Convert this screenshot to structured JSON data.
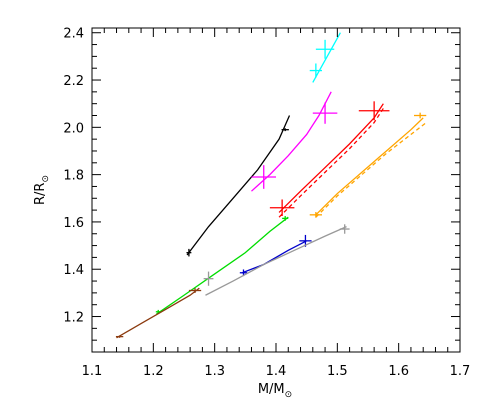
{
  "chart_data": {
    "type": "line",
    "xlabel": "M/M",
    "ylabel": "R/R",
    "label_subscript_symbol": "⊙",
    "xlim": [
      1.1,
      1.7
    ],
    "ylim": [
      1.05,
      2.42
    ],
    "x_ticks": [
      "1.1",
      "1.2",
      "1.3",
      "1.4",
      "1.5",
      "1.6",
      "1.7"
    ],
    "y_ticks": [
      "1.2",
      "1.4",
      "1.6",
      "1.8",
      "2.0",
      "2.2",
      "2.4"
    ],
    "grid": false,
    "legend": "none",
    "series": [
      {
        "color": "#000000",
        "style": "solid",
        "x": [
          1.255,
          1.29,
          1.33,
          1.37,
          1.405,
          1.422
        ],
        "y": [
          1.46,
          1.58,
          1.7,
          1.82,
          1.95,
          2.05
        ],
        "markers": [
          {
            "x": 1.258,
            "y": 1.47,
            "ex": 0.004,
            "ey": 0.016
          },
          {
            "x": 1.415,
            "y": 1.99,
            "ex": 0.006,
            "ey": 0.006
          }
        ]
      },
      {
        "color": "#ff00ff",
        "style": "solid",
        "x": [
          1.36,
          1.39,
          1.42,
          1.45,
          1.47,
          1.49
        ],
        "y": [
          1.73,
          1.8,
          1.88,
          1.97,
          2.05,
          2.15
        ],
        "markers": [
          {
            "x": 1.38,
            "y": 1.79,
            "ex": 0.02,
            "ey": 0.05
          },
          {
            "x": 1.48,
            "y": 2.06,
            "ex": 0.02,
            "ey": 0.045
          }
        ]
      },
      {
        "color": "#00ffff",
        "style": "solid",
        "x": [
          1.46,
          1.475,
          1.49,
          1.505
        ],
        "y": [
          2.19,
          2.26,
          2.33,
          2.4
        ],
        "markers": [
          {
            "x": 1.465,
            "y": 2.24,
            "ex": 0.01,
            "ey": 0.03
          },
          {
            "x": 1.48,
            "y": 2.33,
            "ex": 0.015,
            "ey": 0.04
          }
        ]
      },
      {
        "color": "#ff0000",
        "style": "solid",
        "x": [
          1.405,
          1.44,
          1.48,
          1.52,
          1.56,
          1.575
        ],
        "y": [
          1.64,
          1.73,
          1.83,
          1.93,
          2.04,
          2.1
        ],
        "markers": [
          {
            "x": 1.41,
            "y": 1.66,
            "ex": 0.02,
            "ey": 0.035
          },
          {
            "x": 1.56,
            "y": 2.07,
            "ex": 0.025,
            "ey": 0.04
          }
        ]
      },
      {
        "color": "#ff0000",
        "style": "dashed",
        "x": [
          1.405,
          1.44,
          1.48,
          1.52,
          1.56,
          1.575
        ],
        "y": [
          1.62,
          1.71,
          1.81,
          1.91,
          2.02,
          2.08
        ],
        "markers": []
      },
      {
        "color": "#ffa500",
        "style": "solid",
        "x": [
          1.465,
          1.5,
          1.54,
          1.58,
          1.62,
          1.64
        ],
        "y": [
          1.63,
          1.72,
          1.81,
          1.9,
          1.99,
          2.04
        ],
        "markers": [
          {
            "x": 1.465,
            "y": 1.63,
            "ex": 0.01,
            "ey": 0.012
          },
          {
            "x": 1.635,
            "y": 2.05,
            "ex": 0.01,
            "ey": 0.012
          }
        ]
      },
      {
        "color": "#ffa500",
        "style": "dashed",
        "x": [
          1.465,
          1.5,
          1.54,
          1.58,
          1.62,
          1.645
        ],
        "y": [
          1.62,
          1.71,
          1.8,
          1.89,
          1.97,
          2.02
        ],
        "markers": []
      },
      {
        "color": "#00dd00",
        "style": "solid",
        "x": [
          1.205,
          1.25,
          1.3,
          1.35,
          1.39,
          1.42
        ],
        "y": [
          1.21,
          1.29,
          1.38,
          1.47,
          1.56,
          1.62
        ],
        "markers": [
          {
            "x": 1.208,
            "y": 1.22,
            "ex": 0.004,
            "ey": 0.008
          },
          {
            "x": 1.415,
            "y": 1.615,
            "ex": 0.005,
            "ey": 0.01
          }
        ]
      },
      {
        "color": "#0000cc",
        "style": "solid",
        "x": [
          1.345,
          1.38,
          1.42,
          1.45
        ],
        "y": [
          1.385,
          1.42,
          1.48,
          1.52
        ],
        "markers": [
          {
            "x": 1.347,
            "y": 1.385,
            "ex": 0.006,
            "ey": 0.014
          },
          {
            "x": 1.448,
            "y": 1.52,
            "ex": 0.01,
            "ey": 0.025
          }
        ]
      },
      {
        "color": "#999999",
        "style": "solid",
        "x": [
          1.285,
          1.33,
          1.38,
          1.43,
          1.48,
          1.515
        ],
        "y": [
          1.29,
          1.35,
          1.42,
          1.48,
          1.54,
          1.58
        ],
        "markers": [
          {
            "x": 1.29,
            "y": 1.36,
            "ex": 0.008,
            "ey": 0.03
          },
          {
            "x": 1.512,
            "y": 1.57,
            "ex": 0.008,
            "ey": 0.02
          }
        ]
      },
      {
        "color": "#8b3a0e",
        "style": "solid",
        "x": [
          1.14,
          1.18,
          1.22,
          1.26,
          1.275
        ],
        "y": [
          1.11,
          1.17,
          1.23,
          1.29,
          1.32
        ],
        "markers": [
          {
            "x": 1.145,
            "y": 1.115,
            "ex": 0.006,
            "ey": 0.005
          },
          {
            "x": 1.268,
            "y": 1.31,
            "ex": 0.01,
            "ey": 0.01
          }
        ]
      }
    ]
  }
}
